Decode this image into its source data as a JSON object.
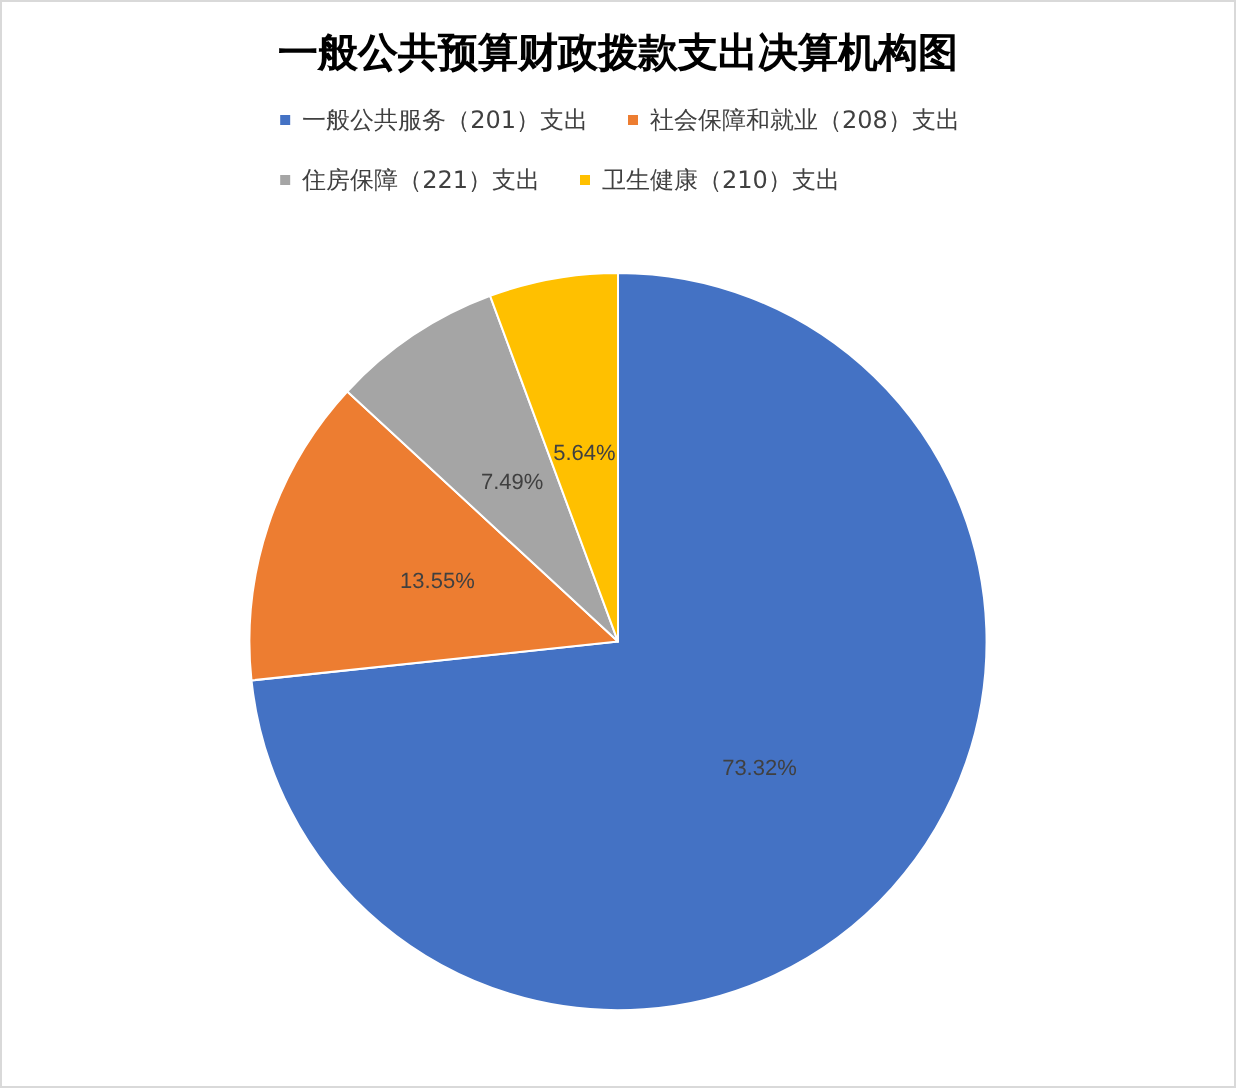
{
  "chart_data": {
    "type": "pie",
    "title": "一般公共预算财政拨款支出决算机构图",
    "categories": [
      "一般公共服务（201）支出",
      "社会保障和就业（208）支出",
      "住房保障（221）支出",
      "卫生健康（210）支出"
    ],
    "values": [
      73.32,
      13.55,
      7.49,
      5.64
    ],
    "colors": [
      "#4472c4",
      "#ed7d31",
      "#a5a5a5",
      "#ffc000"
    ],
    "value_labels": [
      "73.32%",
      "13.55%",
      "7.49%",
      "5.64%"
    ],
    "legend": "top"
  }
}
